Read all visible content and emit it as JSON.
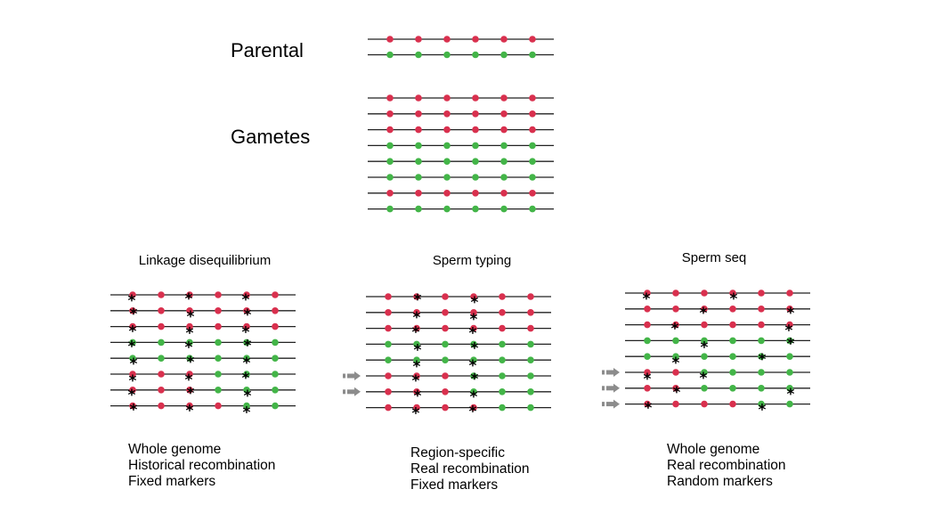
{
  "labels": {
    "parental": "Parental",
    "gametes": "Gametes"
  },
  "colors": {
    "red": "#d9304e",
    "green": "#43b548",
    "line": "#222222",
    "arrow": "#8c8c8c",
    "star": "#000000"
  },
  "parental_rows": [
    "RRRRRR",
    "GGGGGG"
  ],
  "gamete_rows": [
    "RRRRRR",
    "RRRRRR",
    "RRRRRR",
    "GGGGGG",
    "GGGGGG",
    "GGGGGG",
    "RRRRRR",
    "GGGGGG"
  ],
  "star_symbol": "*",
  "panels": [
    {
      "title": "Linkage disequilibrium",
      "rows": [
        "RRRRRR",
        "RRRRRR",
        "RRRRRR",
        "GGGGGG",
        "GGGGGG",
        "RRRGGG",
        "RRRGGG",
        "RRRRGG"
      ],
      "stars": [
        [
          0,
          2,
          4
        ],
        [
          0,
          2,
          4
        ],
        [
          0,
          2,
          4
        ],
        [
          0,
          2,
          4
        ],
        [
          0,
          2,
          4
        ],
        [
          0,
          2,
          4
        ],
        [
          0,
          2,
          4
        ],
        [
          0,
          2,
          4
        ]
      ],
      "arrows": [],
      "description": [
        "Whole genome",
        "Historical recombination",
        "Fixed markers"
      ]
    },
    {
      "title": "Sperm typing",
      "rows": [
        "RRRRRR",
        "RRRRRR",
        "RRRRRR",
        "GGGGGG",
        "GGGGGG",
        "RRRGGG",
        "RRRGGG",
        "RRRRGG"
      ],
      "stars": [
        [
          1,
          3
        ],
        [
          1,
          3
        ],
        [
          1,
          3
        ],
        [
          1,
          3
        ],
        [
          1,
          3
        ],
        [
          1,
          3
        ],
        [
          1,
          3
        ],
        [
          1,
          3
        ]
      ],
      "arrows": [
        5,
        6
      ],
      "description": [
        "Region-specific",
        "Real recombination",
        "Fixed markers"
      ]
    },
    {
      "title": "Sperm seq",
      "rows": [
        "RRRRRR",
        "RRRRRR",
        "RRRRRR",
        "GGGGGG",
        "GGGGGG",
        "RRGGGG",
        "RRGGGG",
        "RRRRGG"
      ],
      "stars": [
        [
          0,
          3
        ],
        [
          2,
          5
        ],
        [
          1,
          5
        ],
        [
          2,
          5
        ],
        [
          1,
          4
        ],
        [
          0,
          2
        ],
        [
          1,
          5
        ],
        [
          0,
          4
        ]
      ],
      "arrows": [
        5,
        6,
        7
      ],
      "description": [
        "Whole genome",
        "Real recombination",
        "Random markers"
      ]
    }
  ]
}
